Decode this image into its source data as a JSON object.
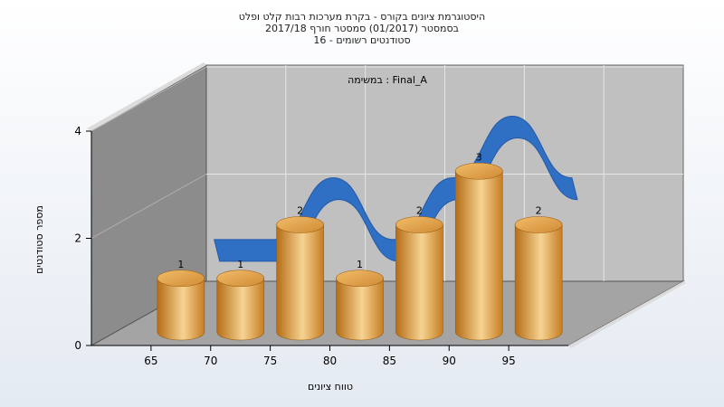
{
  "chart_data": {
    "type": "bar",
    "title_lines": [
      "היסטוגרמת ציונים בקורס - בקרת מערכות רבות קלט ופלט",
      "בסמסטר  (01/2017)  סמסטר חורף 2017/18",
      "סטודנטים רשומים - 16"
    ],
    "annotation": "Final_A : במשימה",
    "xlabel": "טווח ציונים",
    "ylabel": "מספר סטודנטים",
    "x_ticks": [
      "65",
      "70",
      "75",
      "80",
      "85",
      "90",
      "95"
    ],
    "y_ticks": [
      "0",
      "2",
      "4"
    ],
    "ylim": [
      0,
      4
    ],
    "categories": [
      "65",
      "70",
      "75",
      "80",
      "85",
      "90",
      "95"
    ],
    "values": [
      1,
      1,
      2,
      1,
      2,
      3,
      2
    ],
    "data_labels": [
      "1",
      "1",
      "2",
      "1",
      "2",
      "3",
      "2"
    ],
    "trend_curve": "smooth ribbon behind the cylinders following the bar heights",
    "grid": true,
    "colors": {
      "bar_light": "#f6d392",
      "bar_mid": "#e2a24a",
      "bar_dark": "#b56d16",
      "ribbon": "#2f6fc4",
      "back_wall": "#c0c0c0",
      "side_wall": "#8c8c8c",
      "floor": "#a4a4a4"
    }
  }
}
